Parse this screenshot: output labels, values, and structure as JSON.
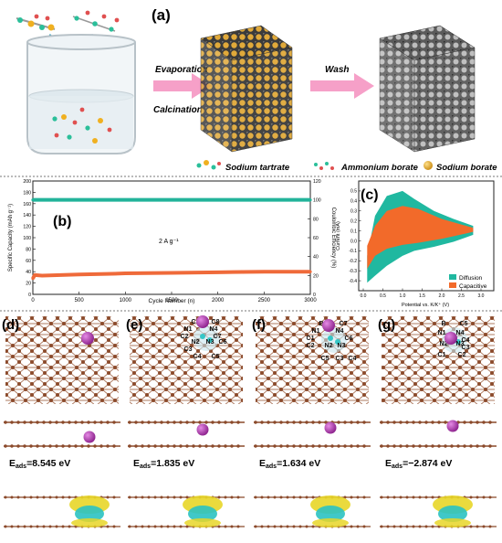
{
  "panel_a": {
    "label": "(a)",
    "step1_top": "Evaporation",
    "step1_bottom": "Calcination",
    "step2": "Wash",
    "legend": [
      "Sodium tartrate",
      "Ammonium borate",
      "Sodium borate"
    ]
  },
  "chart_data": [
    {
      "type": "line",
      "panel_label": "(b)",
      "annotation": "2 A g⁻¹",
      "xlabel": "Cycle Number (n)",
      "ylabel_left": "Specific Capacity (mAh g⁻¹)",
      "ylabel_right": "Coulombic Efficiency (%)",
      "xlim": [
        0,
        3000
      ],
      "ylim_left": [
        0,
        200
      ],
      "ylim_right": [
        0,
        120
      ],
      "x_ticks": [
        "0",
        "500",
        "1000",
        "1500",
        "2000",
        "2500",
        "3000"
      ],
      "y_ticks_left": [
        "0",
        "20",
        "40",
        "60",
        "80",
        "100",
        "120",
        "140",
        "160",
        "180",
        "200"
      ],
      "y_ticks_right": [
        "0",
        "20",
        "40",
        "60",
        "80",
        "100",
        "120"
      ],
      "series": [
        {
          "axis": "left",
          "color": "#ef6a3a",
          "x": [
            0,
            20,
            100,
            300,
            500,
            800,
            1000,
            1500,
            2000,
            2500,
            3000
          ],
          "values": [
            28,
            34,
            33,
            34,
            35,
            36,
            37,
            38,
            39,
            40,
            40
          ]
        },
        {
          "axis": "right",
          "color": "#22b39a",
          "x": [
            0,
            500,
            1000,
            1500,
            2000,
            2500,
            3000
          ],
          "values": [
            100,
            100,
            100,
            100,
            100,
            100,
            100
          ]
        }
      ]
    },
    {
      "type": "area",
      "panel_label": "(c)",
      "xlabel": "Potential vs. K/K⁺ (V)",
      "ylabel": "Current (mA)",
      "xlim": [
        0,
        3.0
      ],
      "ylim": [
        -0.5,
        0.6
      ],
      "x_ticks": [
        "0.0",
        "0.5",
        "1.0",
        "1.5",
        "2.0",
        "2.5",
        "3.0"
      ],
      "y_ticks": [
        "-0.4",
        "-0.3",
        "-0.2",
        "-0.1",
        "0.0",
        "0.1",
        "0.2",
        "0.3",
        "0.4",
        "0.5"
      ],
      "legend": [
        "Diffusion",
        "Capacitive"
      ],
      "series": [
        {
          "name": "Diffusion",
          "color": "#20b8a0",
          "x": [
            0.1,
            0.3,
            0.6,
            1.0,
            1.3,
            1.8,
            2.3,
            2.8,
            2.8,
            2.3,
            1.8,
            1.3,
            1.0,
            0.6,
            0.3,
            0.1
          ],
          "y": [
            -0.15,
            0.25,
            0.45,
            0.5,
            0.42,
            0.3,
            0.22,
            0.15,
            0.06,
            -0.01,
            -0.06,
            -0.1,
            -0.15,
            -0.25,
            -0.35,
            -0.42
          ]
        },
        {
          "name": "Capacitive",
          "color": "#f26a2a",
          "x": [
            0.1,
            0.3,
            0.6,
            1.0,
            1.4,
            2.0,
            2.8,
            2.8,
            2.0,
            1.4,
            1.0,
            0.6,
            0.3,
            0.1
          ],
          "y": [
            -0.05,
            0.15,
            0.3,
            0.35,
            0.32,
            0.22,
            0.13,
            0.09,
            0.02,
            -0.02,
            -0.04,
            -0.08,
            -0.15,
            -0.28
          ]
        }
      ]
    }
  ],
  "panels_dg": [
    {
      "label": "(d)",
      "energy": "=8.545 eV",
      "atoms": []
    },
    {
      "label": "(e)",
      "energy": "=1.835 eV",
      "atoms": [
        "C1",
        "C8",
        "N1",
        "N4",
        "C2",
        "C7",
        "N2",
        "N3",
        "C6",
        "C3",
        "C4",
        "C5"
      ]
    },
    {
      "label": "(f)",
      "energy": "=1.634 eV",
      "atoms": [
        "B",
        "C7",
        "N1",
        "N4",
        "C1",
        "C6",
        "C2",
        "N2",
        "N3",
        "C5",
        "C3",
        "C4"
      ]
    },
    {
      "label": "(g)",
      "energy": "=−2.874 eV",
      "atoms": [
        "B",
        "C5",
        "N1",
        "N4",
        "C4",
        "N2",
        "N3",
        "C3",
        "C1",
        "C2"
      ]
    }
  ],
  "eads_prefix": "E",
  "eads_sub": "ads",
  "colors": {
    "sheet": "#8b4a2b",
    "atom": "#b62fb6",
    "teal": "#22b39a",
    "orange": "#ef6a3a",
    "arrow": "#f6a0c8"
  }
}
